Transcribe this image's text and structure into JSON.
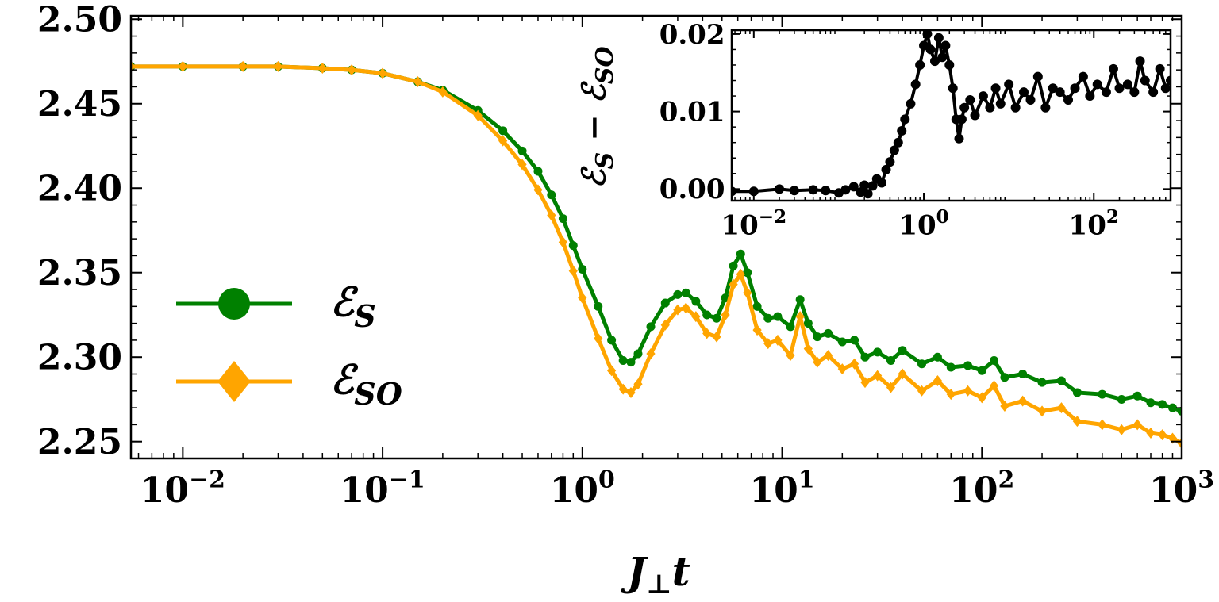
{
  "chart_data": [
    {
      "type": "line",
      "xscale": "log",
      "xlabel": "J⊥t",
      "ylabel": "",
      "xlim": [
        0.0055,
        1000
      ],
      "ylim": [
        2.24,
        2.502
      ],
      "xticks": [
        {
          "value": 0.01,
          "base": "10",
          "exp": "−2"
        },
        {
          "value": 0.1,
          "base": "10",
          "exp": "−1"
        },
        {
          "value": 1,
          "base": "10",
          "exp": "0"
        },
        {
          "value": 10,
          "base": "10",
          "exp": "1"
        },
        {
          "value": 100,
          "base": "10",
          "exp": "2"
        },
        {
          "value": 1000,
          "base": "10",
          "exp": "3"
        }
      ],
      "yticks": [
        {
          "value": 2.25,
          "label": "2.25"
        },
        {
          "value": 2.3,
          "label": "2.30"
        },
        {
          "value": 2.35,
          "label": "2.35"
        },
        {
          "value": 2.4,
          "label": "2.40"
        },
        {
          "value": 2.45,
          "label": "2.45"
        },
        {
          "value": 2.5,
          "label": "2.50"
        }
      ],
      "legend_position": "center-left",
      "series": [
        {
          "name": "ℰS",
          "legend_main": "ℰ",
          "legend_sub": "S",
          "color": "#008000",
          "marker": "circle",
          "x": [
            0.0055,
            0.01,
            0.02,
            0.03,
            0.05,
            0.07,
            0.1,
            0.15,
            0.2,
            0.3,
            0.4,
            0.5,
            0.6,
            0.7,
            0.8,
            0.9,
            1.0,
            1.2,
            1.4,
            1.6,
            1.75,
            1.9,
            2.2,
            2.6,
            3.0,
            3.3,
            3.7,
            4.2,
            4.7,
            5.2,
            5.7,
            6.2,
            6.7,
            7.5,
            8.5,
            9.5,
            11,
            12.3,
            13.5,
            15,
            17,
            20,
            23,
            26,
            30,
            35,
            40,
            50,
            60,
            70,
            85,
            100,
            115,
            130,
            160,
            200,
            250,
            300,
            400,
            500,
            600,
            700,
            800,
            900,
            1000
          ],
          "values": [
            2.472,
            2.472,
            2.472,
            2.472,
            2.471,
            2.47,
            2.468,
            2.463,
            2.458,
            2.446,
            2.434,
            2.422,
            2.41,
            2.396,
            2.382,
            2.366,
            2.352,
            2.33,
            2.31,
            2.298,
            2.297,
            2.302,
            2.318,
            2.332,
            2.337,
            2.338,
            2.333,
            2.325,
            2.323,
            2.335,
            2.354,
            2.361,
            2.35,
            2.33,
            2.323,
            2.324,
            2.318,
            2.334,
            2.32,
            2.312,
            2.314,
            2.309,
            2.31,
            2.3,
            2.303,
            2.298,
            2.304,
            2.296,
            2.3,
            2.294,
            2.295,
            2.292,
            2.298,
            2.288,
            2.29,
            2.285,
            2.286,
            2.279,
            2.278,
            2.275,
            2.277,
            2.273,
            2.272,
            2.27,
            2.268
          ]
        },
        {
          "name": "ℰSO",
          "legend_main": "ℰ",
          "legend_sub": "SO",
          "color": "#FFA500",
          "marker": "diamond",
          "x": [
            0.0055,
            0.01,
            0.02,
            0.03,
            0.05,
            0.07,
            0.1,
            0.15,
            0.2,
            0.3,
            0.4,
            0.5,
            0.6,
            0.7,
            0.8,
            0.9,
            1.0,
            1.2,
            1.4,
            1.6,
            1.75,
            1.9,
            2.2,
            2.6,
            3.0,
            3.3,
            3.7,
            4.2,
            4.7,
            5.2,
            5.7,
            6.2,
            6.7,
            7.5,
            8.5,
            9.5,
            11,
            12.3,
            13.5,
            15,
            17,
            20,
            23,
            26,
            30,
            35,
            40,
            50,
            60,
            70,
            85,
            100,
            115,
            130,
            160,
            200,
            250,
            300,
            400,
            500,
            600,
            700,
            800,
            900,
            1000
          ],
          "values": [
            2.472,
            2.472,
            2.472,
            2.472,
            2.471,
            2.47,
            2.468,
            2.463,
            2.457,
            2.443,
            2.428,
            2.414,
            2.399,
            2.384,
            2.368,
            2.351,
            2.335,
            2.311,
            2.292,
            2.281,
            2.279,
            2.284,
            2.302,
            2.319,
            2.328,
            2.329,
            2.324,
            2.314,
            2.312,
            2.325,
            2.343,
            2.349,
            2.338,
            2.316,
            2.308,
            2.31,
            2.301,
            2.324,
            2.305,
            2.297,
            2.301,
            2.293,
            2.296,
            2.285,
            2.289,
            2.282,
            2.29,
            2.28,
            2.286,
            2.278,
            2.28,
            2.276,
            2.283,
            2.271,
            2.274,
            2.268,
            2.27,
            2.262,
            2.26,
            2.257,
            2.26,
            2.255,
            2.254,
            2.252,
            2.249
          ]
        }
      ]
    },
    {
      "type": "line",
      "xscale": "log",
      "xlabel": "",
      "ylabel": "ℰS − ℰSO",
      "ylabel_parts": {
        "a_main": "ℰ",
        "a_sub": "S",
        "op": "−",
        "b_main": "ℰ",
        "b_sub": "SO"
      },
      "xlim": [
        0.0055,
        800
      ],
      "ylim": [
        -0.0015,
        0.0205
      ],
      "xticks": [
        {
          "value": 0.01,
          "base": "10",
          "exp": "−2"
        },
        {
          "value": 1,
          "base": "10",
          "exp": "0"
        },
        {
          "value": 100,
          "base": "10",
          "exp": "2"
        }
      ],
      "yticks": [
        {
          "value": 0.0,
          "label": "0.00"
        },
        {
          "value": 0.01,
          "label": "0.01"
        },
        {
          "value": 0.02,
          "label": "0.02"
        }
      ],
      "series": [
        {
          "name": "ℰS − ℰSO",
          "color": "#000000",
          "marker": "circle",
          "x": [
            0.0055,
            0.01,
            0.02,
            0.03,
            0.05,
            0.07,
            0.1,
            0.12,
            0.15,
            0.18,
            0.2,
            0.22,
            0.25,
            0.28,
            0.32,
            0.36,
            0.4,
            0.45,
            0.5,
            0.55,
            0.6,
            0.7,
            0.8,
            0.9,
            1.0,
            1.1,
            1.2,
            1.35,
            1.5,
            1.65,
            1.8,
            2.0,
            2.2,
            2.4,
            2.6,
            2.8,
            3.0,
            3.5,
            4.0,
            5.0,
            6.0,
            7.0,
            8.0,
            10,
            12,
            15,
            18,
            22,
            27,
            33,
            40,
            50,
            60,
            75,
            90,
            110,
            140,
            170,
            200,
            250,
            300,
            350,
            400,
            500,
            600,
            700,
            800
          ],
          "values": [
            -0.0003,
            -0.0003,
            0.0,
            -0.0002,
            -0.0001,
            -0.0002,
            -0.0005,
            -0.0001,
            0.0003,
            -0.0004,
            0.0005,
            -0.0006,
            0.0004,
            0.0013,
            0.0008,
            0.0025,
            0.0035,
            0.005,
            0.006,
            0.0075,
            0.009,
            0.011,
            0.0135,
            0.016,
            0.0185,
            0.02,
            0.018,
            0.0165,
            0.0195,
            0.017,
            0.0185,
            0.016,
            0.013,
            0.009,
            0.0065,
            0.009,
            0.0105,
            0.0115,
            0.0095,
            0.012,
            0.0105,
            0.013,
            0.011,
            0.0135,
            0.0105,
            0.0125,
            0.0115,
            0.0145,
            0.0105,
            0.013,
            0.0125,
            0.0115,
            0.013,
            0.0145,
            0.012,
            0.0135,
            0.0125,
            0.0155,
            0.013,
            0.0135,
            0.0125,
            0.0165,
            0.014,
            0.0125,
            0.0155,
            0.013,
            0.014
          ]
        }
      ]
    }
  ]
}
